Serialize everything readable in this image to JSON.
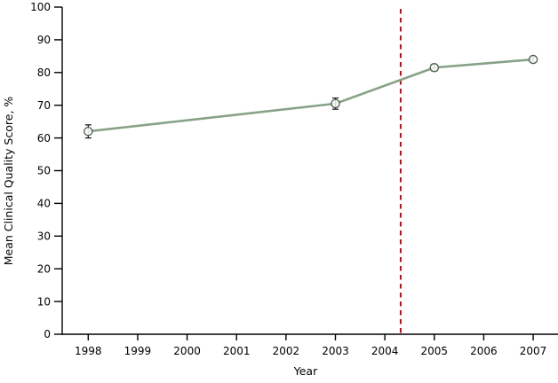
{
  "chart_data": {
    "type": "line",
    "title": "",
    "xlabel": "Year",
    "ylabel": "Mean Clinical Quality Score, %",
    "x_ticks": [
      1998,
      1999,
      2000,
      2001,
      2002,
      2003,
      2004,
      2005,
      2006,
      2007
    ],
    "y_ticks": [
      0,
      10,
      20,
      30,
      40,
      50,
      60,
      70,
      80,
      90,
      100
    ],
    "ylim": [
      0,
      100
    ],
    "grid": false,
    "legend_position": "none",
    "series": [
      {
        "name": "mean-clinical-quality-score",
        "x": [
          1998,
          2003,
          2005,
          2007
        ],
        "y": [
          62.0,
          70.5,
          81.5,
          84.0
        ],
        "y_err": [
          2.0,
          1.7,
          1.0,
          0.8
        ],
        "marker": "open-circle",
        "line_color": "#87a287",
        "marker_fill": "#ffffff",
        "marker_stroke": "#4d5d4d",
        "error_bar_color": "#111111"
      }
    ],
    "reference_line": {
      "orientation": "vertical",
      "x_year": 2004.32,
      "line_style": "dashed",
      "color": "#c00d1e"
    },
    "axis_color": "#000000",
    "background_color": "#ffffff"
  }
}
